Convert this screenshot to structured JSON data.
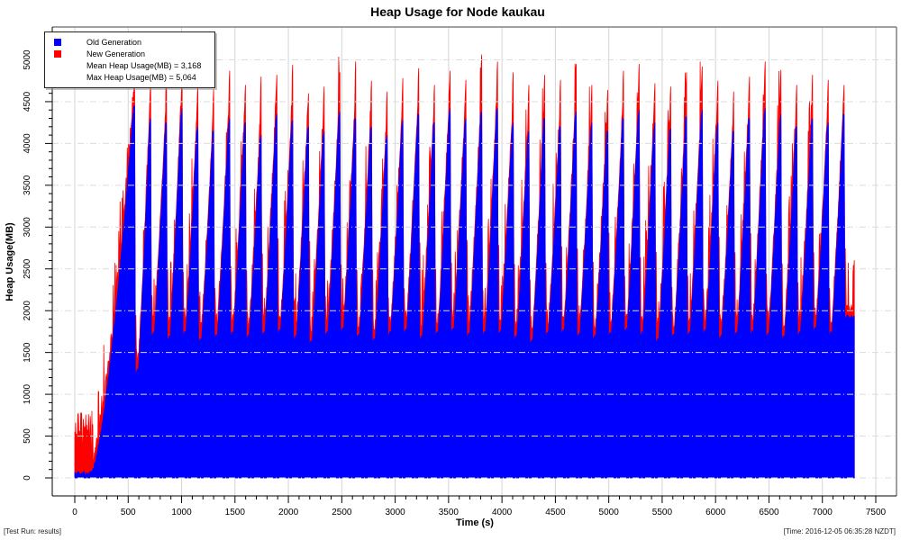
{
  "title": "Heap Usage for Node kaukau",
  "footer": {
    "left": "[Test Run: results]",
    "right": "[Time: 2016-12-05 06:35:28 NZDT]"
  },
  "chart_data": {
    "type": "area",
    "title": "Heap Usage for Node kaukau",
    "xlabel": "Time (s)",
    "ylabel": "Heap Usage(MB)",
    "xlim": [
      0,
      7500
    ],
    "ylim": [
      0,
      5000
    ],
    "x_ticks": [
      0,
      500,
      1000,
      1500,
      2000,
      2500,
      3000,
      3500,
      4000,
      4500,
      5000,
      5500,
      6000,
      6500,
      7000,
      7500
    ],
    "y_ticks": [
      0,
      500,
      1000,
      1500,
      2000,
      2500,
      3000,
      3500,
      4000,
      4500,
      5000
    ],
    "x_minor_step": 100,
    "y_minor_step": 100,
    "grid": true,
    "legend_position": "top-left",
    "colors": {
      "old_gen": "#0000ff",
      "new_gen": "#ff0000",
      "grid_vertical": "#d4d4d4",
      "grid_horizontal": "#dcdcdc",
      "frame": "#808080",
      "axis": "#000000"
    },
    "series": [
      {
        "name": "New Generation",
        "color": "#ff0000",
        "draw_order": "behind"
      },
      {
        "name": "Old Generation",
        "color": "#0000ff",
        "draw_order": "front"
      }
    ],
    "legend": {
      "items": [
        {
          "label": "Old Generation",
          "color": "#0000ff"
        },
        {
          "label": "New Generation",
          "color": "#ff0000"
        }
      ],
      "stats": [
        "Mean Heap Usage(MB) = 3,168",
        "Max Heap Usage(MB) = 5,064"
      ]
    },
    "stats": {
      "mean_mb": 3168,
      "max_mb": 5064
    },
    "t_end": 7300,
    "startup": {
      "jitter_until_s": 148,
      "jitter_total_range_mb": [
        300,
        820
      ],
      "initial_old_gen_mb": [
        20,
        80
      ],
      "ramp_start_s": 152,
      "ramp_exponent": 1.5
    },
    "cycles_format": [
      "t_peak_s",
      "old_gen_peak_mb",
      "total_peak_mb",
      "old_gen_base_after_drop_mb"
    ],
    "cycles": [
      [
        560,
        4450,
        4900,
        1250
      ],
      [
        710,
        4300,
        4750,
        1700
      ],
      [
        858,
        4250,
        4980,
        1650
      ],
      [
        1005,
        4420,
        4850,
        1700
      ],
      [
        1152,
        4200,
        4700,
        1620
      ],
      [
        1300,
        4150,
        4650,
        1680
      ],
      [
        1450,
        4300,
        4870,
        1700
      ],
      [
        1598,
        4250,
        4700,
        1660
      ],
      [
        1745,
        4100,
        4800,
        1700
      ],
      [
        1892,
        4350,
        4820,
        1720
      ],
      [
        2040,
        4280,
        4940,
        1650
      ],
      [
        2188,
        4200,
        4600,
        1600
      ],
      [
        2335,
        4150,
        4680,
        1700
      ],
      [
        2482,
        4380,
        4850,
        1750
      ],
      [
        2630,
        4300,
        4980,
        1680
      ],
      [
        2778,
        4200,
        4750,
        1620
      ],
      [
        2925,
        4100,
        4620,
        1700
      ],
      [
        3072,
        4280,
        4780,
        1730
      ],
      [
        3220,
        4350,
        4900,
        1650
      ],
      [
        3368,
        4250,
        4700,
        1700
      ],
      [
        3515,
        4420,
        4870,
        1750
      ],
      [
        3662,
        4300,
        4760,
        1680
      ],
      [
        3810,
        4380,
        5064,
        1700
      ],
      [
        3958,
        4420,
        4980,
        1720
      ],
      [
        4105,
        4250,
        4850,
        1650
      ],
      [
        4252,
        4150,
        4700,
        1600
      ],
      [
        4400,
        4300,
        4820,
        1700
      ],
      [
        4548,
        4200,
        4760,
        1730
      ],
      [
        4695,
        4380,
        4950,
        1680
      ],
      [
        4842,
        4250,
        4700,
        1650
      ],
      [
        4990,
        4150,
        4640,
        1700
      ],
      [
        5138,
        4300,
        4870,
        1750
      ],
      [
        5285,
        4400,
        4950,
        1700
      ],
      [
        5432,
        4250,
        4720,
        1620
      ],
      [
        5580,
        4180,
        4680,
        1680
      ],
      [
        5728,
        4320,
        4850,
        1700
      ],
      [
        5875,
        4400,
        4920,
        1730
      ],
      [
        6022,
        4250,
        4750,
        1650
      ],
      [
        6170,
        4150,
        4620,
        1700
      ],
      [
        6318,
        4300,
        4800,
        1720
      ],
      [
        6465,
        4420,
        4980,
        1680
      ],
      [
        6612,
        4350,
        4880,
        1650
      ],
      [
        6760,
        4200,
        4700,
        1700
      ],
      [
        6908,
        4300,
        4820,
        1750
      ],
      [
        7055,
        4250,
        4760,
        1700
      ],
      [
        7203,
        4350,
        4700,
        1900
      ]
    ]
  }
}
